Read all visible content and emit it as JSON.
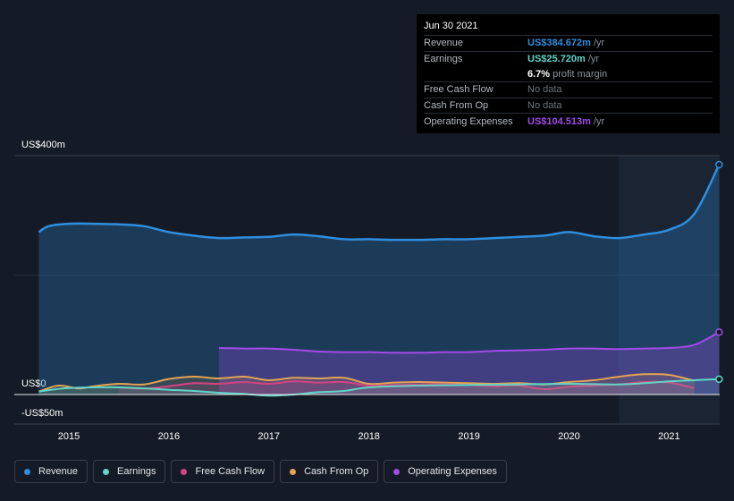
{
  "tooltip": {
    "date": "Jun 30 2021",
    "revenue_label": "Revenue",
    "revenue_value": "US$384.672m",
    "revenue_unit": "/yr",
    "earnings_label": "Earnings",
    "earnings_value": "US$25.720m",
    "earnings_unit": "/yr",
    "margin_value": "6.7%",
    "margin_label": "profit margin",
    "fcf_label": "Free Cash Flow",
    "fcf_value": "No data",
    "cfo_label": "Cash From Op",
    "cfo_value": "No data",
    "opex_label": "Operating Expenses",
    "opex_value": "US$104.513m",
    "opex_unit": "/yr"
  },
  "colors": {
    "revenue": "#2e8fe0",
    "earnings": "#5fd6c8",
    "fcf": "#d4457f",
    "cfo": "#e3a452",
    "opex": "#a24be8",
    "background": "#151b26"
  },
  "legend": [
    {
      "label": "Revenue",
      "color": "#2e8fe0"
    },
    {
      "label": "Earnings",
      "color": "#5fd6c8"
    },
    {
      "label": "Free Cash Flow",
      "color": "#d4457f"
    },
    {
      "label": "Cash From Op",
      "color": "#e3a452"
    },
    {
      "label": "Operating Expenses",
      "color": "#a24be8"
    }
  ],
  "chart_data": {
    "type": "area",
    "y_unit": "US$ millions",
    "ylim": [
      -50,
      400
    ],
    "y_tick_labels": [
      "US$400m",
      "US$0",
      "-US$50m"
    ],
    "x_tick_labels": [
      "2015",
      "2016",
      "2017",
      "2018",
      "2019",
      "2020",
      "2021"
    ],
    "xlim": [
      2014.7,
      2021.5
    ],
    "highlight_start": 2020.5,
    "series": [
      {
        "name": "Revenue",
        "x": [
          2014.7,
          2014.8,
          2015.0,
          2015.25,
          2015.5,
          2015.75,
          2016.0,
          2016.25,
          2016.5,
          2016.75,
          2017.0,
          2017.25,
          2017.5,
          2017.75,
          2018.0,
          2018.25,
          2018.5,
          2018.75,
          2019.0,
          2019.25,
          2019.5,
          2019.75,
          2020.0,
          2020.25,
          2020.5,
          2020.75,
          2021.0,
          2021.25,
          2021.5
        ],
        "values": [
          272,
          282,
          286,
          286,
          285,
          282,
          272,
          266,
          262,
          263,
          264,
          268,
          265,
          260,
          260,
          259,
          259,
          260,
          260,
          262,
          264,
          266,
          272,
          265,
          262,
          268,
          276,
          302,
          385
        ]
      },
      {
        "name": "Earnings",
        "x": [
          2014.7,
          2015.0,
          2015.5,
          2016.0,
          2016.25,
          2016.5,
          2016.75,
          2017.0,
          2017.25,
          2017.5,
          2017.75,
          2018.0,
          2018.5,
          2019.0,
          2019.5,
          2020.0,
          2020.5,
          2020.75,
          2021.0,
          2021.25,
          2021.5
        ],
        "values": [
          5,
          11,
          12,
          8,
          6,
          3,
          1,
          -2,
          0,
          4,
          6,
          12,
          15,
          16,
          17,
          18,
          17,
          19,
          22,
          24,
          25.7
        ]
      },
      {
        "name": "Free Cash Flow",
        "x": [
          2015.5,
          2015.75,
          2016.0,
          2016.25,
          2016.5,
          2016.75,
          2017.0,
          2017.25,
          2017.5,
          2017.75,
          2018.0,
          2018.25,
          2018.5,
          2018.75,
          2019.0,
          2019.25,
          2019.5,
          2019.75,
          2020.0,
          2020.25,
          2020.5,
          2020.75,
          2021.0,
          2021.25
        ],
        "values": [
          12,
          10,
          14,
          19,
          18,
          21,
          18,
          22,
          20,
          21,
          15,
          16,
          17,
          17,
          16,
          14,
          15,
          9,
          13,
          15,
          17,
          21,
          20,
          11
        ]
      },
      {
        "name": "Cash From Op",
        "x": [
          2014.7,
          2014.9,
          2015.1,
          2015.25,
          2015.5,
          2015.75,
          2016.0,
          2016.25,
          2016.5,
          2016.75,
          2017.0,
          2017.25,
          2017.5,
          2017.75,
          2018.0,
          2018.25,
          2018.5,
          2018.75,
          2019.0,
          2019.25,
          2019.5,
          2019.75,
          2020.0,
          2020.25,
          2020.5,
          2020.75,
          2021.0,
          2021.25
        ],
        "values": [
          5,
          15,
          10,
          14,
          18,
          17,
          26,
          30,
          27,
          30,
          24,
          28,
          27,
          28,
          18,
          20,
          21,
          20,
          19,
          18,
          19,
          17,
          21,
          24,
          30,
          34,
          33,
          23
        ]
      },
      {
        "name": "Operating Expenses",
        "x": [
          2016.5,
          2016.75,
          2017.0,
          2017.25,
          2017.5,
          2017.75,
          2018.0,
          2018.25,
          2018.5,
          2018.75,
          2019.0,
          2019.25,
          2019.5,
          2019.75,
          2020.0,
          2020.25,
          2020.5,
          2020.75,
          2021.0,
          2021.25,
          2021.5
        ],
        "values": [
          78,
          77,
          77,
          75,
          72,
          71,
          71,
          70,
          70,
          71,
          71,
          73,
          74,
          75,
          77,
          77,
          76,
          77,
          78,
          83,
          104.5
        ]
      }
    ]
  }
}
